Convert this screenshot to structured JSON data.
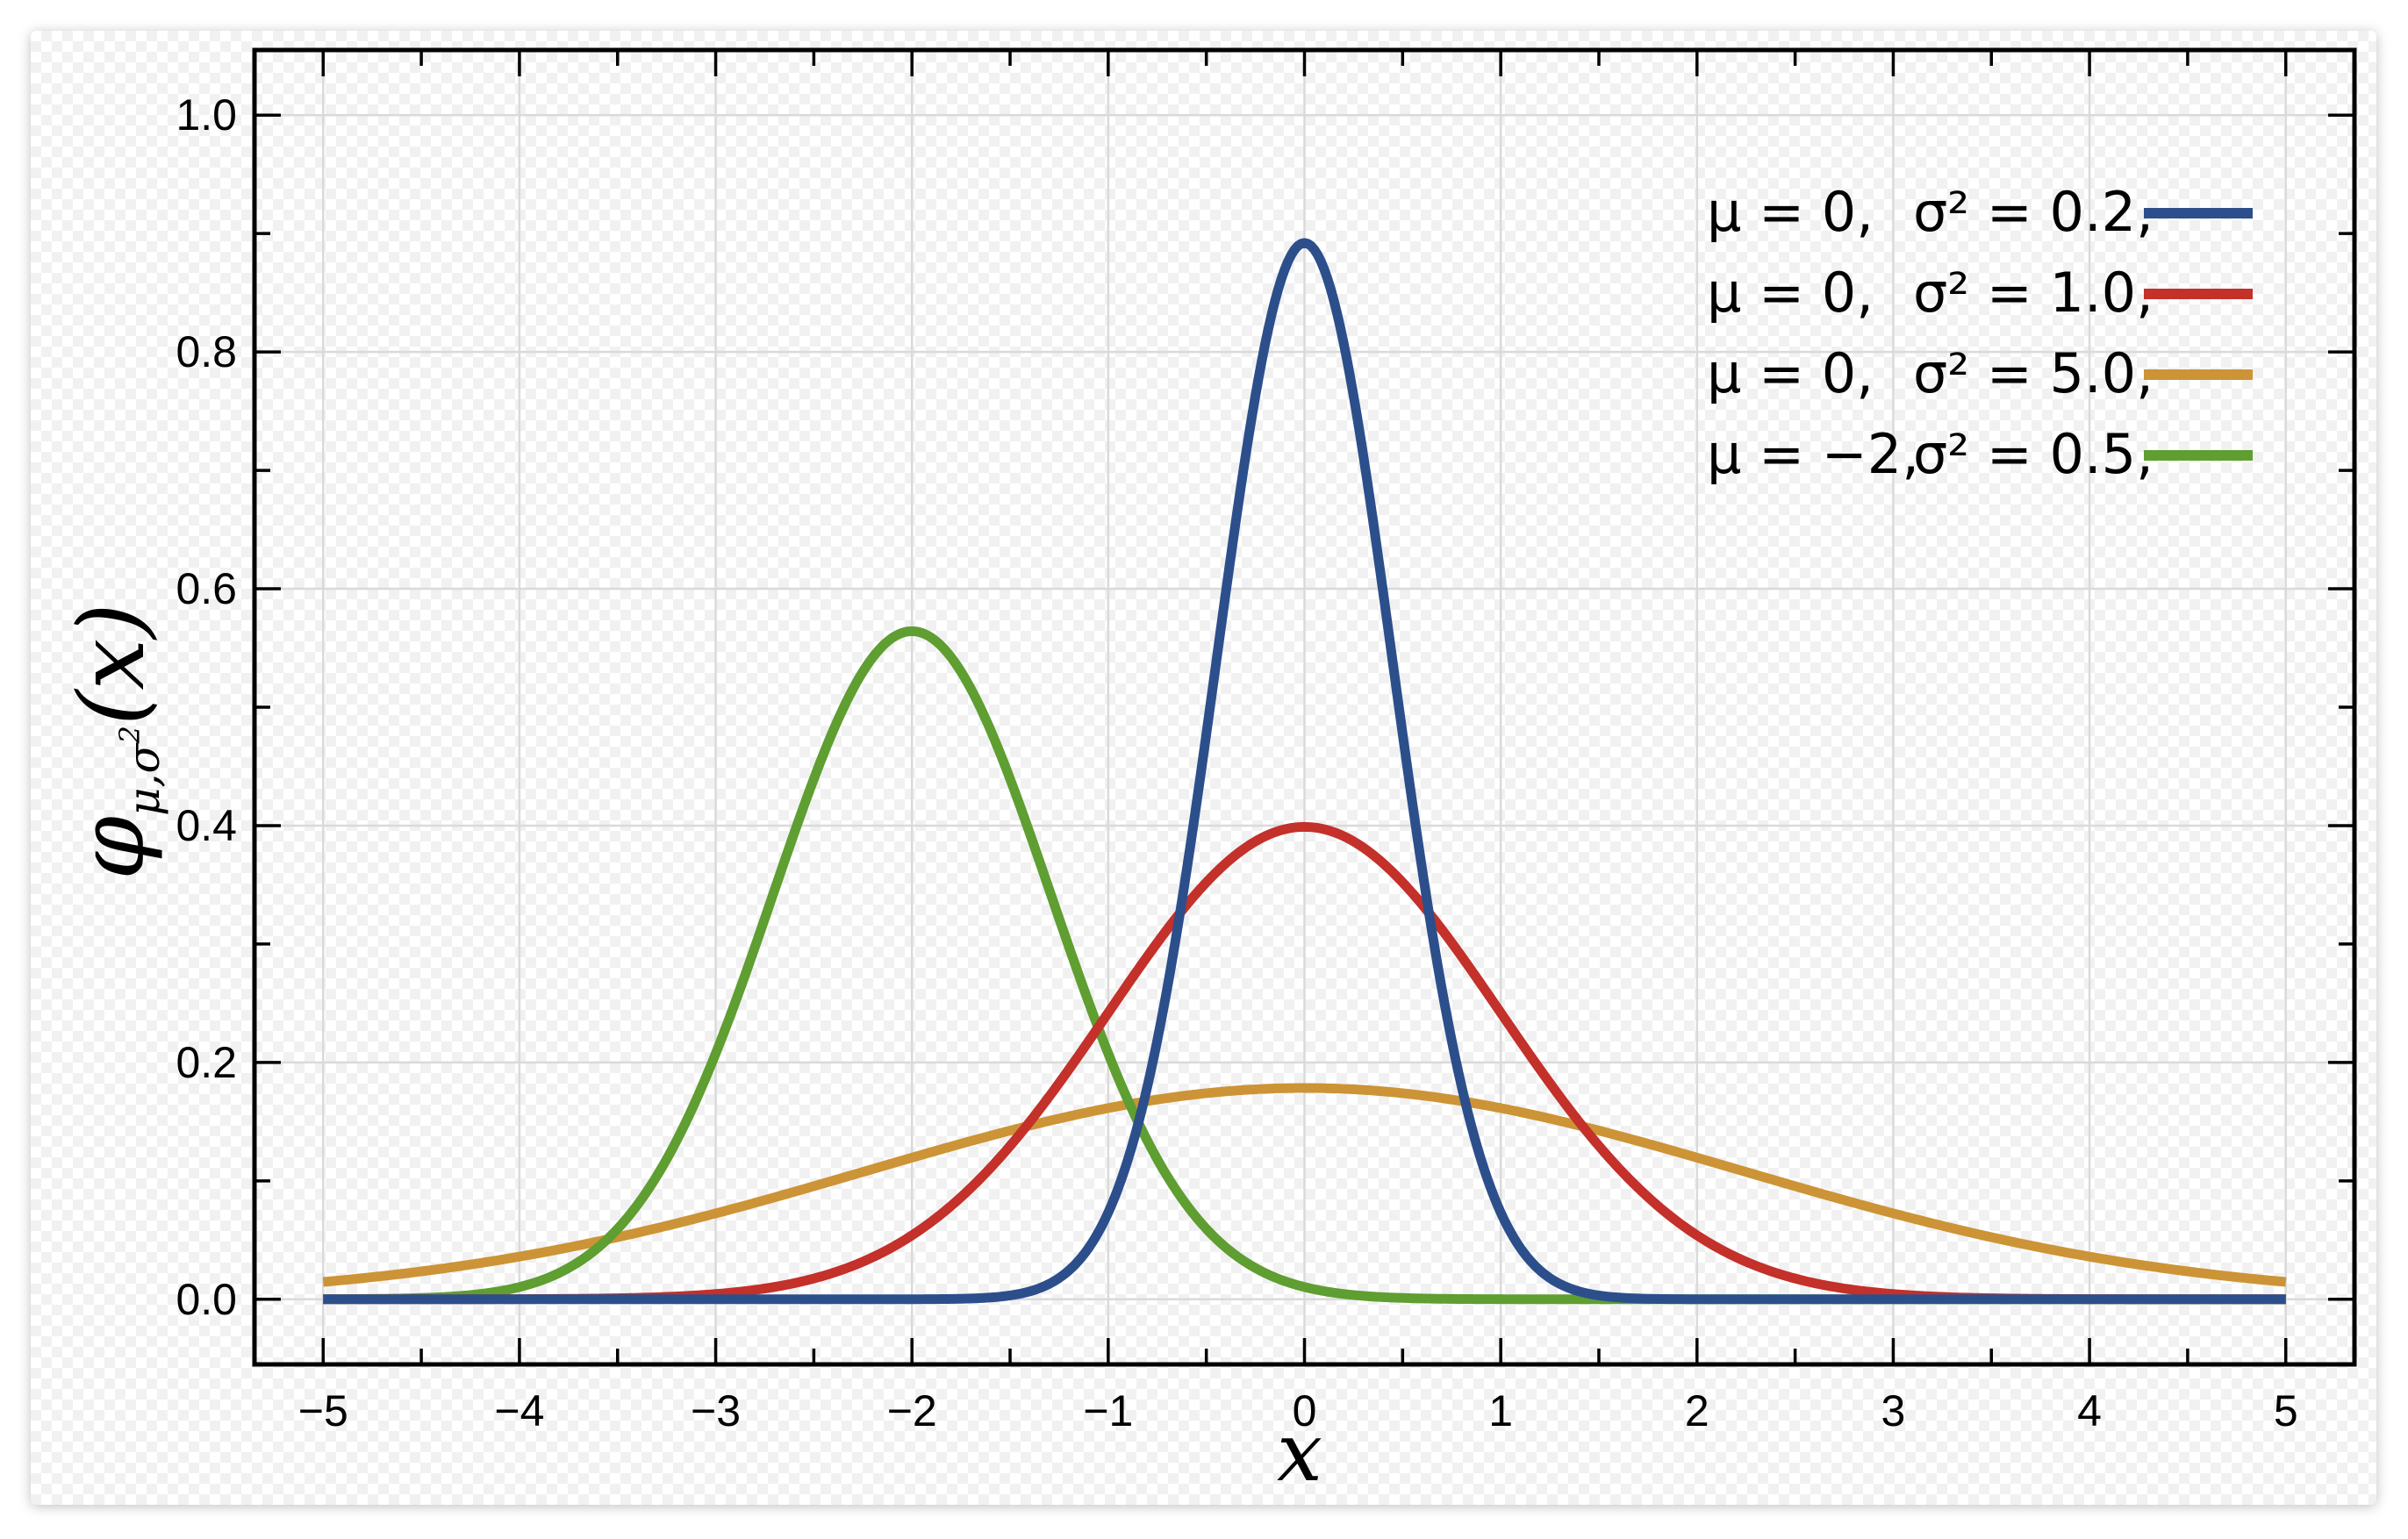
{
  "chart_data": {
    "type": "line",
    "title": "",
    "xlabel": "x",
    "ylabel": "φ_{μ,σ²}(x)",
    "ylabel_parts": {
      "symbol": "φ",
      "subscript": "μ,σ",
      "superscript": "2",
      "argument": "(x)"
    },
    "xlim": [
      -5.35,
      5.35
    ],
    "ylim": [
      -0.055,
      1.055
    ],
    "x_ticks": [
      -5,
      -4,
      -3,
      -2,
      -1,
      0,
      1,
      2,
      3,
      4,
      5
    ],
    "x_tick_labels": [
      "−5",
      "−4",
      "−3",
      "−2",
      "−1",
      "0",
      "1",
      "2",
      "3",
      "4",
      "5"
    ],
    "y_ticks": [
      0.0,
      0.2,
      0.4,
      0.6,
      0.8,
      1.0
    ],
    "y_tick_labels": [
      "0.0",
      "0.2",
      "0.4",
      "0.6",
      "0.8",
      "1.0"
    ],
    "x_minor_step": 0.5,
    "y_minor_step": 0.1,
    "grid": true,
    "legend_position": "top-right",
    "x_range_plotted": [
      -5,
      5
    ],
    "series": [
      {
        "mu_label": "μ = 0,",
        "sigma_label": "σ² = 0.2,",
        "mu": 0,
        "variance": 0.2,
        "color": "#2c4f8c"
      },
      {
        "mu_label": "μ = 0,",
        "sigma_label": "σ² = 1.0,",
        "mu": 0,
        "variance": 1.0,
        "color": "#c4302a"
      },
      {
        "mu_label": "μ = 0,",
        "sigma_label": "σ² = 5.0,",
        "mu": 0,
        "variance": 5.0,
        "color": "#cc9436"
      },
      {
        "mu_label": "μ = −2,",
        "sigma_label": "σ² = 0.5,",
        "mu": -2,
        "variance": 0.5,
        "color": "#5f9e31"
      }
    ]
  }
}
